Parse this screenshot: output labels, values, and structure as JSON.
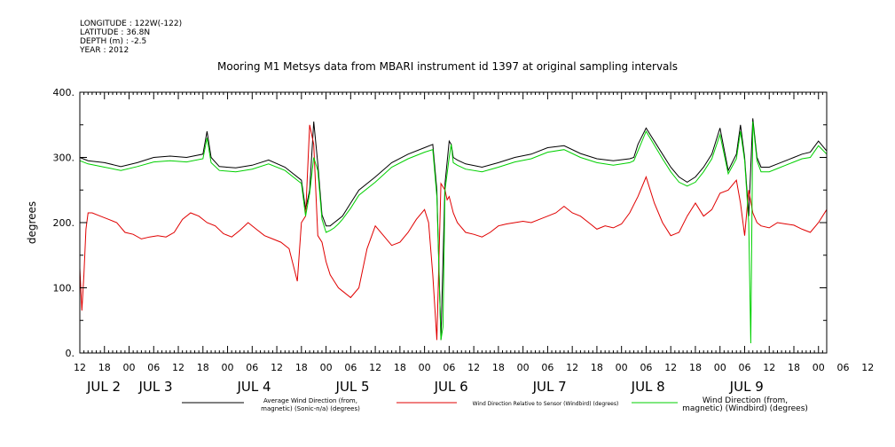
{
  "header": {
    "longitude": "LONGITUDE : 122W(-122)",
    "latitude": "LATITUDE : 36.8N",
    "depth": "DEPTH (m) : -2.5",
    "year": "YEAR : 2012"
  },
  "colors": {
    "series_black": "#000000",
    "series_red": "#e00000",
    "series_green": "#00d000"
  },
  "chart_data": {
    "type": "line",
    "title": "Mooring M1 Metsys data from MBARI instrument id 1397 at original sampling intervals",
    "ylabel": "degrees",
    "ylim": [
      0,
      400
    ],
    "yticks": [
      "0.",
      "100.",
      "200.",
      "300.",
      "400."
    ],
    "xlim": [
      12,
      194
    ],
    "x_unit": "hours since 00:00 Jul 2 2012",
    "xtick_labels": [
      "12",
      "18",
      "00",
      "06",
      "12",
      "18",
      "00",
      "06",
      "12",
      "18",
      "00",
      "06",
      "12",
      "18",
      "00",
      "06",
      "12",
      "18",
      "00",
      "06",
      "12",
      "18",
      "00",
      "06",
      "12",
      "18",
      "00",
      "06",
      "12",
      "18",
      "00",
      "06",
      "12"
    ],
    "day_labels": [
      "JUL  2",
      "JUL  3",
      "JUL  4",
      "JUL  5",
      "JUL  6",
      "JUL  7",
      "JUL  8",
      "JUL  9"
    ],
    "series": [
      {
        "name": "Average Wind Direction (from, magnetic) (Sonic-n/a) (degrees)",
        "color": "#000000",
        "x": [
          12,
          14,
          18,
          22,
          26,
          30,
          34,
          38,
          42,
          43,
          44,
          46,
          50,
          54,
          58,
          62,
          66,
          67,
          68,
          69,
          70,
          71,
          72,
          73,
          74,
          75,
          76,
          78,
          80,
          84,
          88,
          92,
          96,
          98,
          99,
          100,
          101,
          102,
          102.5,
          103,
          104,
          106,
          110,
          114,
          118,
          122,
          126,
          130,
          134,
          138,
          142,
          146,
          147,
          148,
          150,
          154,
          156,
          158,
          160,
          162,
          164,
          166,
          168,
          170,
          172,
          173,
          174,
          175,
          176,
          177,
          178,
          180,
          182,
          184,
          186,
          188,
          190,
          192,
          194
        ],
        "y": [
          300,
          295,
          292,
          286,
          292,
          300,
          302,
          300,
          305,
          340,
          300,
          286,
          284,
          288,
          296,
          285,
          265,
          220,
          250,
          355,
          290,
          212,
          195,
          195,
          200,
          205,
          210,
          230,
          250,
          270,
          292,
          305,
          315,
          320,
          250,
          20,
          260,
          325,
          320,
          300,
          296,
          290,
          285,
          292,
          300,
          305,
          315,
          318,
          306,
          298,
          295,
          298,
          300,
          320,
          345,
          305,
          285,
          270,
          262,
          270,
          285,
          305,
          345,
          280,
          305,
          350,
          300,
          210,
          360,
          300,
          285,
          285,
          290,
          295,
          300,
          305,
          308,
          325,
          310
        ]
      },
      {
        "name": "Wind Direction Relative to Sensor (Windbird) (degrees)",
        "color": "#e00000",
        "x": [
          12,
          12.5,
          13,
          13.5,
          14,
          15,
          17,
          19,
          21,
          23,
          25,
          27,
          29,
          31,
          33,
          35,
          37,
          39,
          41,
          43,
          45,
          47,
          49,
          51,
          53,
          55,
          57,
          59,
          61,
          63,
          65,
          66,
          67,
          68,
          69,
          70,
          71,
          72,
          73,
          74,
          75,
          76,
          78,
          80,
          82,
          84,
          86,
          88,
          90,
          92,
          94,
          96,
          97,
          98,
          99,
          100,
          101,
          101.5,
          102,
          103,
          104,
          106,
          108,
          110,
          112,
          114,
          116,
          118,
          120,
          122,
          124,
          126,
          128,
          130,
          132,
          134,
          136,
          138,
          140,
          142,
          144,
          146,
          148,
          150,
          152,
          154,
          156,
          158,
          160,
          162,
          164,
          166,
          168,
          170,
          172,
          173,
          174,
          175,
          176,
          177,
          178,
          180,
          182,
          184,
          186,
          188,
          190,
          192,
          194
        ],
        "y": [
          130,
          65,
          120,
          190,
          215,
          215,
          210,
          205,
          200,
          185,
          182,
          175,
          178,
          180,
          178,
          185,
          205,
          215,
          210,
          200,
          195,
          183,
          178,
          188,
          200,
          190,
          180,
          175,
          170,
          160,
          110,
          200,
          210,
          350,
          320,
          180,
          170,
          140,
          120,
          110,
          100,
          95,
          85,
          100,
          160,
          195,
          180,
          165,
          170,
          185,
          205,
          220,
          200,
          120,
          20,
          260,
          250,
          235,
          240,
          215,
          200,
          185,
          182,
          178,
          185,
          195,
          198,
          200,
          202,
          200,
          205,
          210,
          215,
          225,
          215,
          210,
          200,
          190,
          195,
          192,
          198,
          215,
          240,
          270,
          230,
          200,
          180,
          185,
          210,
          230,
          210,
          220,
          245,
          250,
          265,
          230,
          180,
          250,
          215,
          200,
          195,
          192,
          200,
          198,
          196,
          190,
          185,
          200,
          220
        ]
      },
      {
        "name": "Wind Direction (from, magnetic) (Windbird) (degrees)",
        "color": "#00d000",
        "x": [
          12,
          14,
          18,
          22,
          26,
          30,
          34,
          38,
          42,
          43,
          44,
          46,
          50,
          54,
          58,
          62,
          66,
          67,
          68,
          69,
          70,
          71,
          72,
          73,
          74,
          75,
          76,
          78,
          80,
          84,
          88,
          92,
          96,
          98,
          99,
          100,
          100.5,
          101,
          102,
          102.5,
          103,
          104,
          106,
          110,
          114,
          118,
          122,
          126,
          130,
          134,
          138,
          142,
          146,
          147,
          148,
          150,
          154,
          156,
          158,
          160,
          162,
          164,
          166,
          168,
          170,
          172,
          173,
          174,
          175,
          175.5,
          176,
          177,
          178,
          180,
          182,
          184,
          186,
          188,
          190,
          192,
          194
        ],
        "y": [
          295,
          290,
          285,
          280,
          286,
          293,
          295,
          293,
          298,
          330,
          292,
          280,
          278,
          282,
          290,
          280,
          260,
          210,
          245,
          300,
          280,
          205,
          185,
          188,
          192,
          198,
          205,
          222,
          242,
          262,
          285,
          298,
          308,
          312,
          240,
          20,
          40,
          250,
          300,
          320,
          292,
          288,
          282,
          278,
          285,
          293,
          298,
          308,
          312,
          300,
          292,
          288,
          292,
          295,
          310,
          340,
          298,
          278,
          262,
          256,
          262,
          278,
          298,
          335,
          275,
          298,
          340,
          295,
          200,
          15,
          355,
          295,
          278,
          278,
          283,
          288,
          293,
          298,
          300,
          318,
          305
        ]
      }
    ],
    "legend": [
      {
        "label_line1": "Average Wind Direction (from,",
        "label_line2": "magnetic) (Sonic-n/a) (degrees)",
        "color": "#000000"
      },
      {
        "label_line1": "Wind Direction Relative to Sensor (Windbird) (degrees)",
        "label_line2": "",
        "color": "#e00000"
      },
      {
        "label_line1": "Wind Direction (from,",
        "label_line2": "magnetic) (Windbird) (degrees)",
        "color": "#00d000"
      }
    ],
    "legend_placement": "bottom",
    "grid": false
  }
}
